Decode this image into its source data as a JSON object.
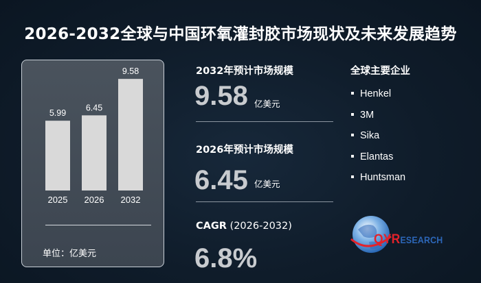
{
  "title": "2026-2032全球与中国环氧灌封胶市场现状及未来发展趋势",
  "chart_data": {
    "type": "bar",
    "categories": [
      "2025",
      "2026",
      "2032"
    ],
    "values": [
      5.99,
      6.45,
      9.58
    ],
    "value_labels": [
      "5.99",
      "6.45",
      "9.58"
    ],
    "unit": "单位：亿美元",
    "ylim": [
      0,
      10
    ],
    "grid": false,
    "bar_color": "#d9d9d9"
  },
  "stats": {
    "market_2032_label": "2032年预计市场规模",
    "market_2032_value": "9.58",
    "market_2032_unit": "亿美元",
    "market_2026_label": "2026年预计市场规模",
    "market_2026_value": "6.45",
    "market_2026_unit": "亿美元",
    "cagr_label": "CAGR",
    "cagr_period": "(2026-2032)",
    "cagr_value": "6.8%"
  },
  "companies": {
    "title": "全球主要企业",
    "items": [
      "Henkel",
      "3M",
      "Sika",
      "Elantas",
      "Huntsman"
    ]
  },
  "logo": {
    "text_main": "QYR",
    "text_sub": "ESEARCH",
    "colors": {
      "red": "#e3222a",
      "blue": "#2c66b8"
    }
  }
}
